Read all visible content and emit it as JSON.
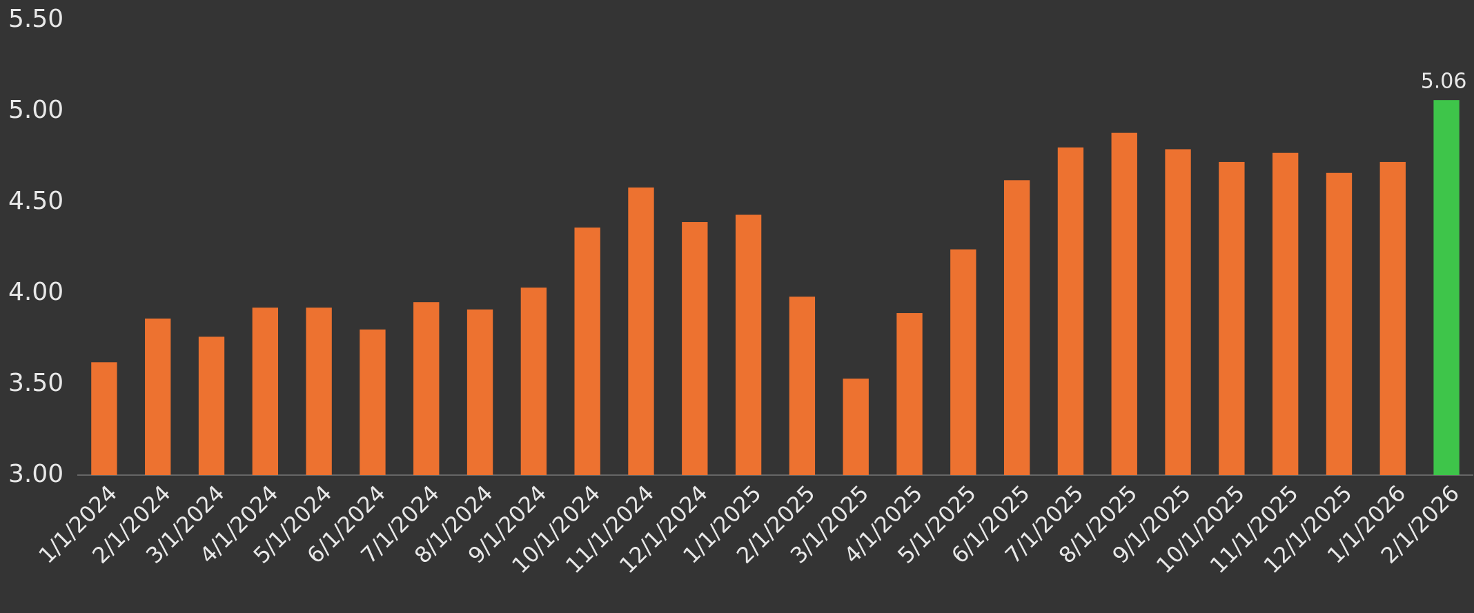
{
  "chart_data": {
    "type": "bar",
    "categories": [
      "1/1/2024",
      "2/1/2024",
      "3/1/2024",
      "4/1/2024",
      "5/1/2024",
      "6/1/2024",
      "7/1/2024",
      "8/1/2024",
      "9/1/2024",
      "10/1/2024",
      "11/1/2024",
      "12/1/2024",
      "1/1/2025",
      "2/1/2025",
      "3/1/2025",
      "4/1/2025",
      "5/1/2025",
      "6/1/2025",
      "7/1/2025",
      "8/1/2025",
      "9/1/2025",
      "10/1/2025",
      "11/1/2025",
      "12/1/2025",
      "1/1/2026",
      "2/1/2026"
    ],
    "values": [
      3.62,
      3.86,
      3.76,
      3.92,
      3.92,
      3.8,
      3.95,
      3.91,
      4.03,
      4.36,
      4.58,
      4.39,
      4.43,
      3.98,
      3.53,
      3.89,
      4.24,
      4.62,
      4.8,
      4.88,
      4.79,
      4.72,
      4.77,
      4.66,
      4.72,
      5.06
    ],
    "colors": [
      "#ed7230",
      "#ed7230",
      "#ed7230",
      "#ed7230",
      "#ed7230",
      "#ed7230",
      "#ed7230",
      "#ed7230",
      "#ed7230",
      "#ed7230",
      "#ed7230",
      "#ed7230",
      "#ed7230",
      "#ed7230",
      "#ed7230",
      "#ed7230",
      "#ed7230",
      "#ed7230",
      "#ed7230",
      "#ed7230",
      "#ed7230",
      "#ed7230",
      "#ed7230",
      "#ed7230",
      "#ed7230",
      "#3ec54a"
    ],
    "labeled_index": 25,
    "ylim": [
      3.0,
      5.5
    ],
    "yticks": [
      {
        "value": 3.0,
        "label": "3.00"
      },
      {
        "value": 3.5,
        "label": "3.50"
      },
      {
        "value": 4.0,
        "label": "4.00"
      },
      {
        "value": 4.5,
        "label": "4.50"
      },
      {
        "value": 5.0,
        "label": "5.00"
      },
      {
        "value": 5.5,
        "label": "5.50"
      }
    ]
  }
}
